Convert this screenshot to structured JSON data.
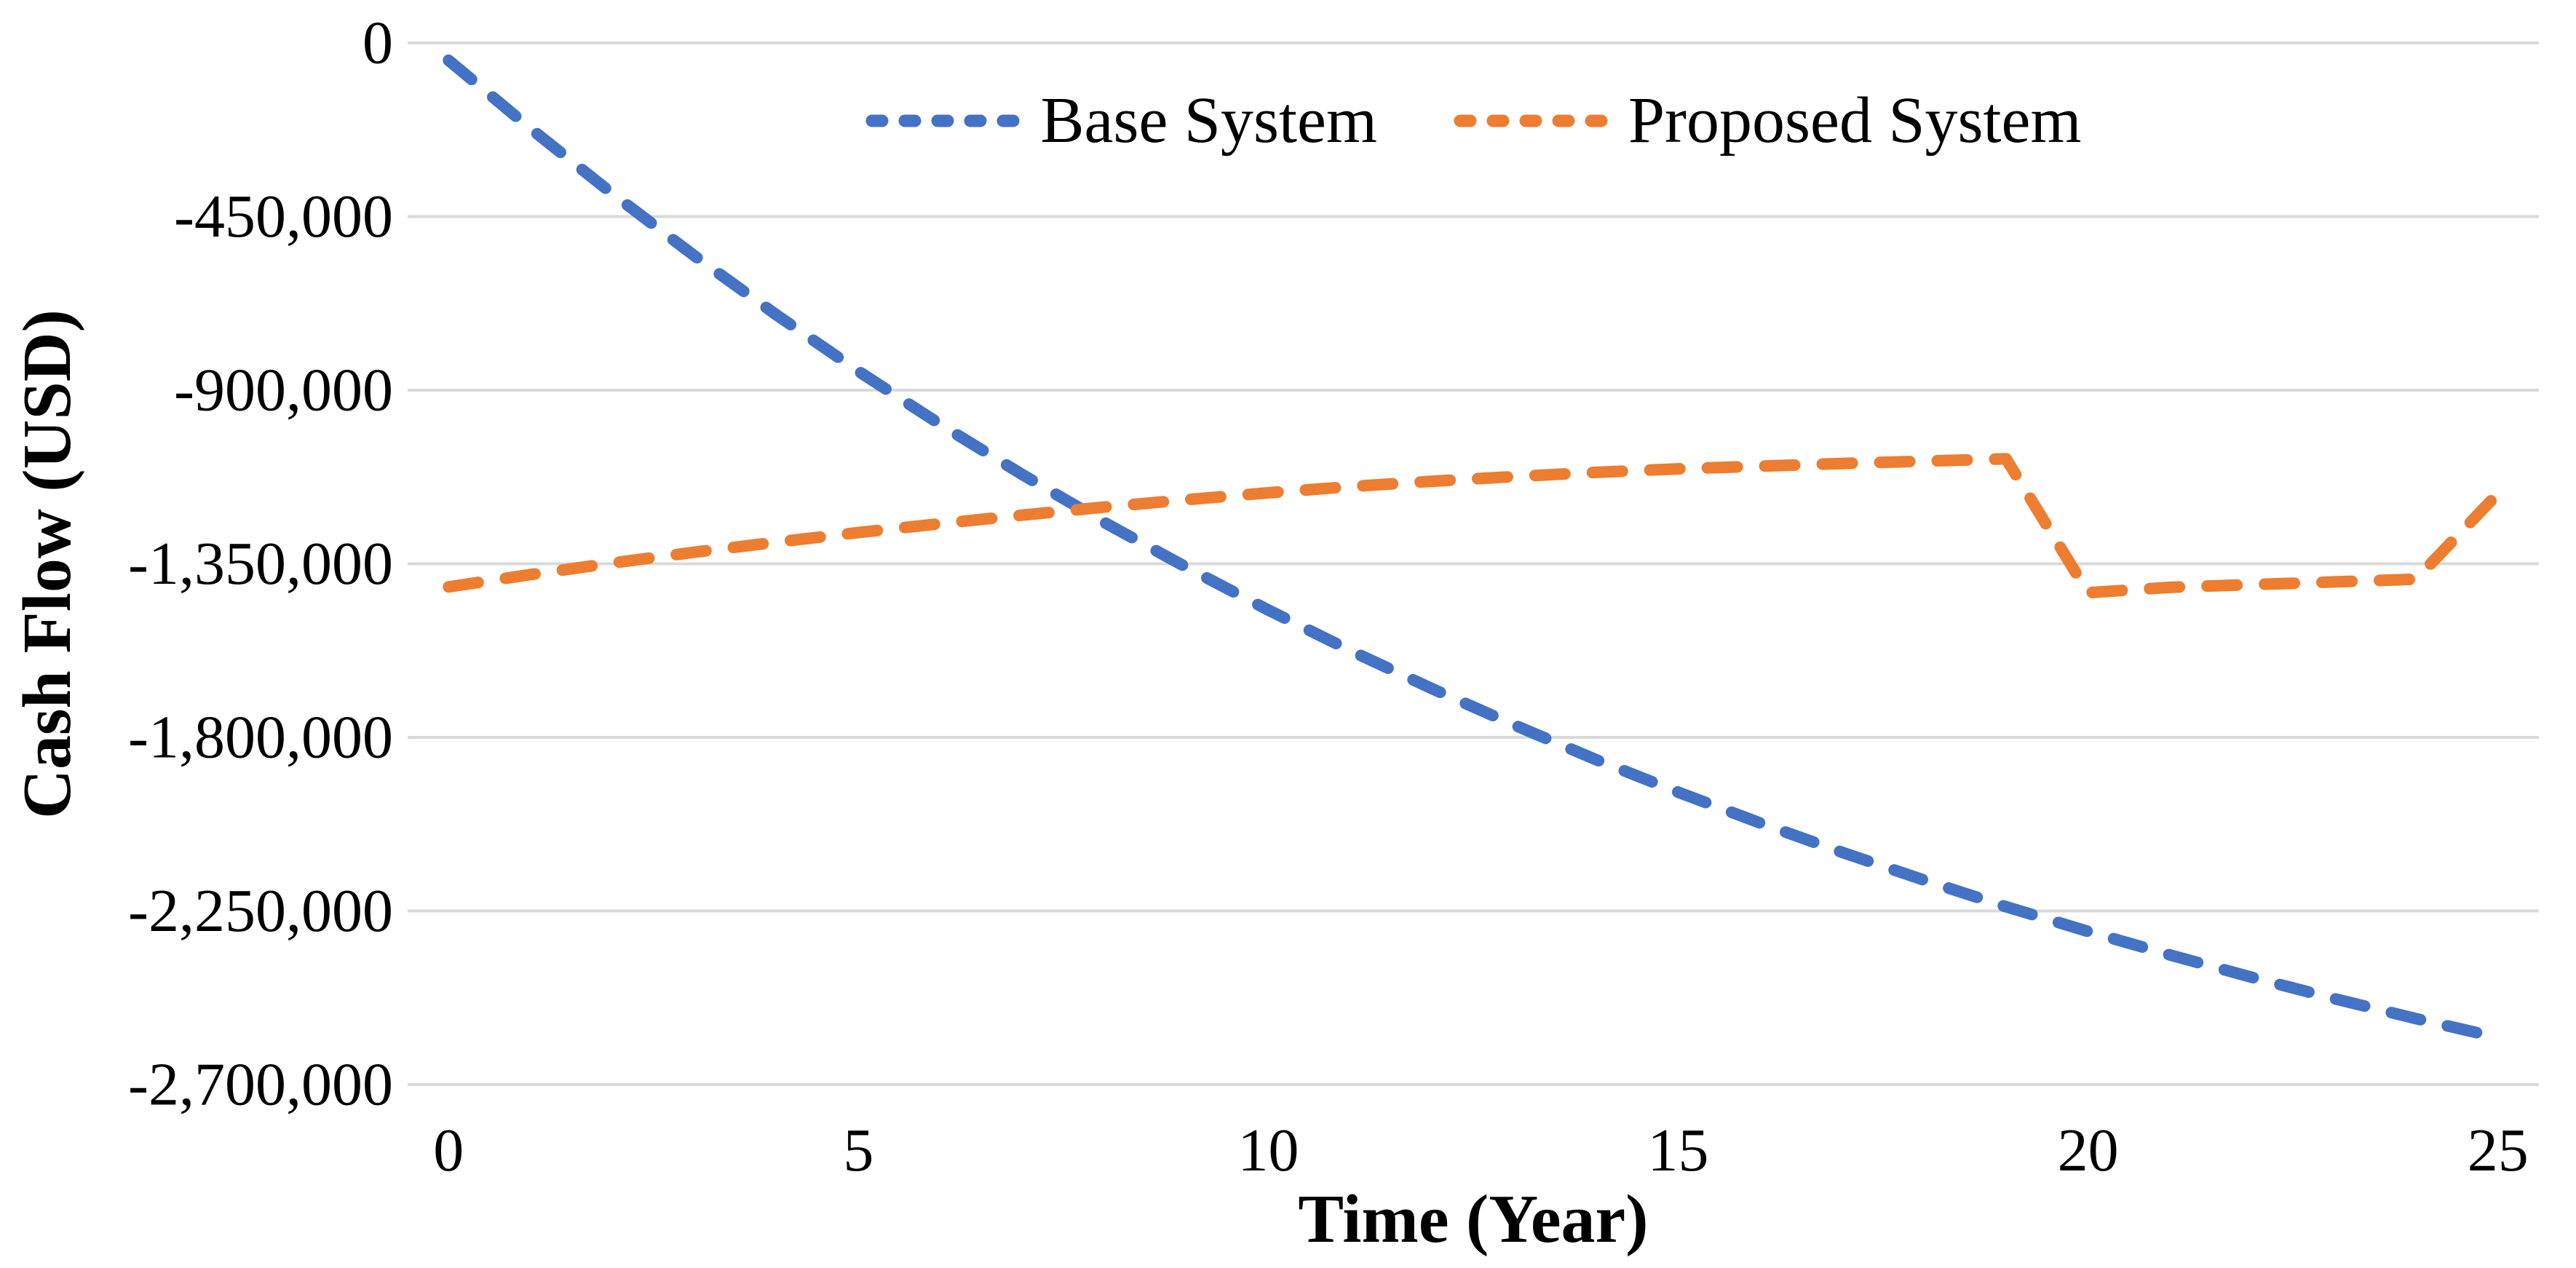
{
  "chart_data": {
    "type": "line",
    "title": "",
    "xlabel": "Time (Year)",
    "ylabel": "Cash Flow (USD)",
    "grid": true,
    "legend_position": "top-center",
    "xlim": [
      0,
      25
    ],
    "ylim": [
      -2700000,
      0
    ],
    "x": [
      0,
      1,
      2,
      3,
      4,
      5,
      6,
      7,
      8,
      9,
      10,
      11,
      12,
      13,
      14,
      15,
      16,
      17,
      18,
      19,
      20,
      21,
      22,
      23,
      24,
      25
    ],
    "x_ticks": [
      {
        "label": "0",
        "value": 0
      },
      {
        "label": "5",
        "value": 5
      },
      {
        "label": "10",
        "value": 10
      },
      {
        "label": "15",
        "value": 15
      },
      {
        "label": "20",
        "value": 20
      },
      {
        "label": "25",
        "value": 25
      }
    ],
    "y_ticks": [
      {
        "label": "0",
        "value": 0
      },
      {
        "label": "-450,000",
        "value": -450000
      },
      {
        "label": "-900,000",
        "value": -900000
      },
      {
        "label": "-1,350,000",
        "value": -1350000
      },
      {
        "label": "-1,800,000",
        "value": -1800000
      },
      {
        "label": "-2,250,000",
        "value": -2250000
      },
      {
        "label": "-2,700,000",
        "value": -2700000
      }
    ],
    "series": [
      {
        "name": "Base System",
        "color": "#4472C4",
        "line_style": "dashed",
        "values": [
          -45000,
          -222000,
          -391000,
          -552000,
          -705000,
          -851000,
          -989000,
          -1119000,
          -1243000,
          -1359000,
          -1470000,
          -1575000,
          -1674000,
          -1768000,
          -1858000,
          -1942000,
          -2022000,
          -2098000,
          -2170000,
          -2239000,
          -2303000,
          -2364000,
          -2422000,
          -2477000,
          -2529000,
          -2578000
        ]
      },
      {
        "name": "Proposed System",
        "color": "#ED7D31",
        "line_style": "dashed",
        "values": [
          -1410000,
          -1378000,
          -1348000,
          -1320000,
          -1294000,
          -1269000,
          -1246000,
          -1224000,
          -1203000,
          -1184000,
          -1166000,
          -1150000,
          -1136000,
          -1124000,
          -1113000,
          -1104000,
          -1097000,
          -1090000,
          -1084000,
          -1078000,
          -1425000,
          -1411000,
          -1404000,
          -1397000,
          -1390000,
          -1168000
        ]
      }
    ]
  },
  "colors": {
    "background": "#FFFFFF",
    "gridline": "#D9D9D9",
    "text": "#000000"
  }
}
